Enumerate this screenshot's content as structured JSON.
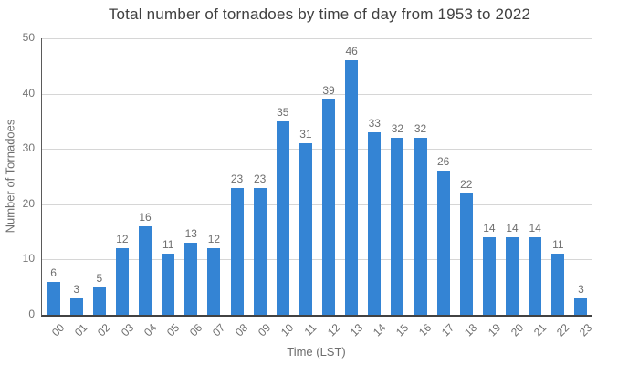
{
  "chart_data": {
    "type": "bar",
    "title": "Total number of tornadoes by time of day from 1953 to 2022",
    "xlabel": "Time (LST)",
    "ylabel": "Number of Tornadoes",
    "categories": [
      "00",
      "01",
      "02",
      "03",
      "04",
      "05",
      "06",
      "07",
      "08",
      "09",
      "10",
      "11",
      "12",
      "13",
      "14",
      "15",
      "16",
      "17",
      "18",
      "19",
      "20",
      "21",
      "22",
      "23"
    ],
    "values": [
      6,
      3,
      5,
      12,
      16,
      11,
      13,
      12,
      23,
      23,
      35,
      31,
      39,
      46,
      33,
      32,
      32,
      26,
      22,
      14,
      14,
      14,
      11,
      3
    ],
    "ylim": [
      0,
      50
    ],
    "ytick_step": 10,
    "yticks": [
      0,
      10,
      20,
      30,
      40,
      50
    ],
    "grid": true,
    "legend": "none",
    "value_labels_shown": true
  },
  "colors": {
    "bar": "#3484d4",
    "title_text": "#404040",
    "axis_text": "#6e6e6e",
    "tick_text": "#757575",
    "gridline": "#d6d6d6",
    "axis_line": "#424242",
    "background": "#ffffff"
  }
}
